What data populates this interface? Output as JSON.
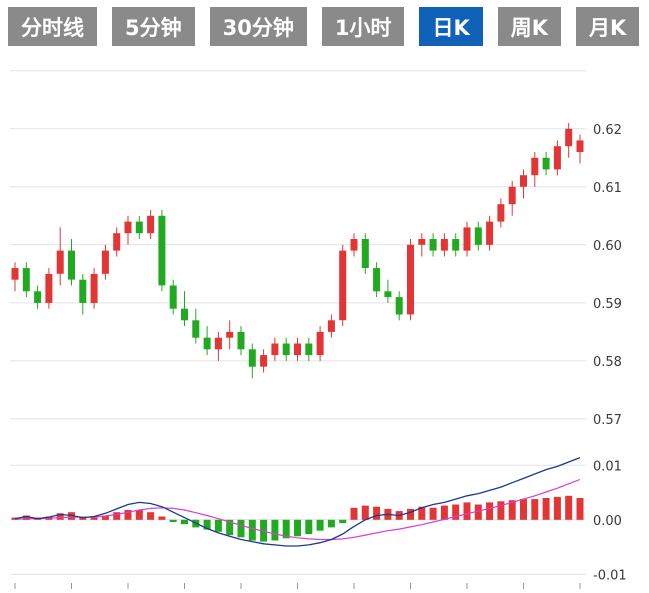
{
  "toolbar": {
    "tabs": [
      {
        "label": "分时线",
        "active": false
      },
      {
        "label": "5分钟",
        "active": false
      },
      {
        "label": "30分钟",
        "active": false
      },
      {
        "label": "1小时",
        "active": false
      },
      {
        "label": "日K",
        "active": true
      },
      {
        "label": "周K",
        "active": false
      },
      {
        "label": "月K",
        "active": false
      }
    ]
  },
  "colors": {
    "tab_active_bg": "#1062b8",
    "tab_inactive_bg": "#8a8a8a",
    "tab_text": "#ffffff",
    "up": "#e23535",
    "down": "#21aa21",
    "dif_line": "#1a3a8c",
    "dea_line": "#d93fd0",
    "grid": "#e2e2e2",
    "axis_text": "#3a3a3a",
    "tick": "#999999"
  },
  "chart_data": {
    "type": "candlestick",
    "title": "",
    "indicator": "MACD",
    "legend_position": "none",
    "grid": true,
    "price_axis_ticks": [
      0.62,
      0.61,
      0.6,
      0.59,
      0.58,
      0.57
    ],
    "price_grid": [
      0.63,
      0.62,
      0.61,
      0.6,
      0.59,
      0.58,
      0.57
    ],
    "price_range": [
      0.5655,
      0.631
    ],
    "macd_axis_ticks": [
      0.01,
      0.0,
      -0.01
    ],
    "macd_range": [
      -0.0114,
      0.0128
    ],
    "candles": [
      [
        0.594,
        0.597,
        0.592,
        0.596
      ],
      [
        0.596,
        0.597,
        0.591,
        0.592
      ],
      [
        0.592,
        0.593,
        0.589,
        0.59
      ],
      [
        0.59,
        0.596,
        0.589,
        0.595
      ],
      [
        0.595,
        0.603,
        0.593,
        0.599
      ],
      [
        0.599,
        0.601,
        0.593,
        0.594
      ],
      [
        0.594,
        0.595,
        0.588,
        0.59
      ],
      [
        0.59,
        0.596,
        0.589,
        0.595
      ],
      [
        0.595,
        0.6,
        0.594,
        0.599
      ],
      [
        0.599,
        0.603,
        0.598,
        0.602
      ],
      [
        0.602,
        0.605,
        0.6,
        0.604
      ],
      [
        0.604,
        0.605,
        0.601,
        0.602
      ],
      [
        0.602,
        0.606,
        0.601,
        0.605
      ],
      [
        0.605,
        0.606,
        0.592,
        0.593
      ],
      [
        0.593,
        0.594,
        0.588,
        0.589
      ],
      [
        0.589,
        0.592,
        0.586,
        0.587
      ],
      [
        0.587,
        0.589,
        0.583,
        0.584
      ],
      [
        0.584,
        0.586,
        0.581,
        0.582
      ],
      [
        0.582,
        0.585,
        0.58,
        0.584
      ],
      [
        0.584,
        0.587,
        0.582,
        0.585
      ],
      [
        0.585,
        0.586,
        0.581,
        0.582
      ],
      [
        0.582,
        0.583,
        0.577,
        0.579
      ],
      [
        0.579,
        0.582,
        0.578,
        0.581
      ],
      [
        0.581,
        0.584,
        0.58,
        0.583
      ],
      [
        0.583,
        0.584,
        0.58,
        0.581
      ],
      [
        0.581,
        0.584,
        0.58,
        0.583
      ],
      [
        0.583,
        0.584,
        0.58,
        0.581
      ],
      [
        0.581,
        0.586,
        0.58,
        0.585
      ],
      [
        0.585,
        0.588,
        0.584,
        0.587
      ],
      [
        0.587,
        0.6,
        0.586,
        0.599
      ],
      [
        0.599,
        0.602,
        0.598,
        0.601
      ],
      [
        0.601,
        0.602,
        0.595,
        0.596
      ],
      [
        0.596,
        0.597,
        0.591,
        0.592
      ],
      [
        0.592,
        0.594,
        0.59,
        0.591
      ],
      [
        0.591,
        0.592,
        0.587,
        0.588
      ],
      [
        0.588,
        0.601,
        0.587,
        0.6
      ],
      [
        0.6,
        0.602,
        0.598,
        0.601
      ],
      [
        0.601,
        0.602,
        0.598,
        0.599
      ],
      [
        0.599,
        0.602,
        0.598,
        0.601
      ],
      [
        0.601,
        0.602,
        0.598,
        0.599
      ],
      [
        0.599,
        0.604,
        0.598,
        0.603
      ],
      [
        0.603,
        0.604,
        0.599,
        0.6
      ],
      [
        0.6,
        0.605,
        0.599,
        0.604
      ],
      [
        0.604,
        0.608,
        0.603,
        0.607
      ],
      [
        0.607,
        0.611,
        0.605,
        0.61
      ],
      [
        0.61,
        0.613,
        0.608,
        0.612
      ],
      [
        0.612,
        0.616,
        0.61,
        0.615
      ],
      [
        0.615,
        0.616,
        0.612,
        0.613
      ],
      [
        0.613,
        0.618,
        0.612,
        0.617
      ],
      [
        0.617,
        0.621,
        0.615,
        0.62
      ],
      [
        0.616,
        0.619,
        0.614,
        0.618
      ]
    ],
    "macd": {
      "histogram": [
        0.0004,
        0.0008,
        0.0004,
        0.0006,
        0.0012,
        0.0014,
        0.0006,
        0.0004,
        0.0008,
        0.0014,
        0.0018,
        0.0018,
        0.0014,
        0.0006,
        -0.0004,
        -0.0008,
        -0.0014,
        -0.0018,
        -0.0022,
        -0.0028,
        -0.0032,
        -0.0038,
        -0.004,
        -0.0038,
        -0.0034,
        -0.003,
        -0.0026,
        -0.002,
        -0.0014,
        -0.0006,
        0.0022,
        0.0026,
        0.0024,
        0.002,
        0.0016,
        0.002,
        0.0024,
        0.0022,
        0.0026,
        0.0028,
        0.0032,
        0.0028,
        0.0032,
        0.0034,
        0.0036,
        0.0038,
        0.0038,
        0.004,
        0.0042,
        0.0044,
        0.004
      ],
      "dif": [
        0.0002,
        0.0006,
        0.0002,
        0.0005,
        0.001,
        0.0008,
        0.0004,
        0.0006,
        0.0012,
        0.002,
        0.0028,
        0.0032,
        0.003,
        0.0024,
        0.0014,
        0.0004,
        -0.0006,
        -0.0016,
        -0.0024,
        -0.003,
        -0.0036,
        -0.004,
        -0.0044,
        -0.0046,
        -0.0048,
        -0.0048,
        -0.0046,
        -0.0042,
        -0.0036,
        -0.0026,
        -0.0012,
        0.0,
        0.0008,
        0.001,
        0.0008,
        0.0014,
        0.0022,
        0.0028,
        0.0032,
        0.0038,
        0.0044,
        0.0048,
        0.0054,
        0.006,
        0.0068,
        0.0076,
        0.0084,
        0.0092,
        0.0098,
        0.0106,
        0.0114
      ],
      "dea": [
        0.0001,
        0.0002,
        0.0002,
        0.0003,
        0.0004,
        0.0005,
        0.0005,
        0.0005,
        0.0007,
        0.001,
        0.0014,
        0.0018,
        0.0021,
        0.0022,
        0.0021,
        0.0018,
        0.0013,
        0.0008,
        0.0002,
        -0.0004,
        -0.001,
        -0.0016,
        -0.0021,
        -0.0026,
        -0.003,
        -0.0033,
        -0.0035,
        -0.0036,
        -0.0036,
        -0.0035,
        -0.0032,
        -0.0028,
        -0.0024,
        -0.002,
        -0.0017,
        -0.0013,
        -0.0009,
        -0.0004,
        0.0001,
        0.0006,
        0.0011,
        0.0016,
        0.0021,
        0.0026,
        0.0032,
        0.0038,
        0.0044,
        0.0051,
        0.0058,
        0.0066,
        0.0074
      ]
    }
  }
}
